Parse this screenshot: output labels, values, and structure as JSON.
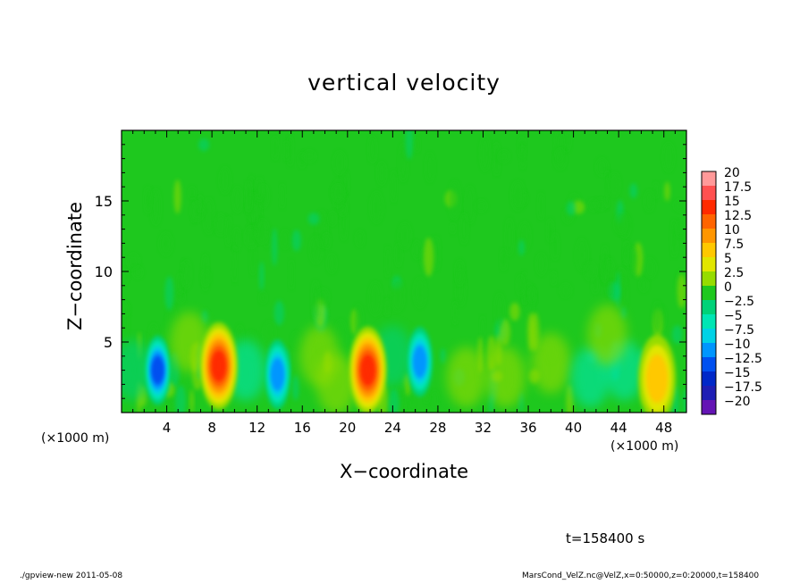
{
  "chart_data": {
    "type": "heatmap",
    "title": "vertical velocity",
    "xlabel": "X−coordinate",
    "ylabel": "Z−coordinate",
    "x_unit_left": "(×1000 m)",
    "x_unit_right": "(×1000 m)",
    "xlim": [
      0,
      50
    ],
    "ylim": [
      0,
      20
    ],
    "x_ticks": [
      4,
      8,
      12,
      16,
      20,
      24,
      28,
      32,
      36,
      40,
      44,
      48
    ],
    "x_tick_labels": [
      "4",
      "8",
      "12",
      "16",
      "20",
      "24",
      "28",
      "32",
      "36",
      "40",
      "44",
      "48"
    ],
    "y_ticks": [
      5,
      10,
      15
    ],
    "y_tick_labels": [
      "5",
      "10",
      "15"
    ],
    "colorbar": {
      "levels": [
        "20",
        "17.5",
        "15",
        "12.5",
        "10",
        "7.5",
        "5",
        "2.5",
        "0",
        "−2.5",
        "−5",
        "−7.5",
        "−10",
        "−12.5",
        "−15",
        "−17.5",
        "−20"
      ],
      "colors": [
        "#ff9999",
        "#ff5050",
        "#ff2a00",
        "#ff6400",
        "#ff9600",
        "#ffc800",
        "#e1e600",
        "#96dc00",
        "#1ec81e",
        "#00d278",
        "#00e6b4",
        "#00d2e6",
        "#0096ff",
        "#0050f0",
        "#0028c8",
        "#1e1eb4",
        "#6414b4"
      ]
    },
    "features": [
      {
        "x": 3.2,
        "z": 3.0,
        "value": -13
      },
      {
        "x": 8.6,
        "z": 3.3,
        "value": 15
      },
      {
        "x": 13.8,
        "z": 2.7,
        "value": -10
      },
      {
        "x": 21.8,
        "z": 3.0,
        "value": 14
      },
      {
        "x": 26.4,
        "z": 3.6,
        "value": -11
      },
      {
        "x": 47.4,
        "z": 2.4,
        "value": 8
      }
    ]
  },
  "annotation": {
    "time": "t=158400 s"
  },
  "footer": {
    "left": "./gpview-new  2011-05-08",
    "right": "MarsCond_VelZ.nc@VelZ,x=0:50000,z=0:20000,t=158400"
  }
}
